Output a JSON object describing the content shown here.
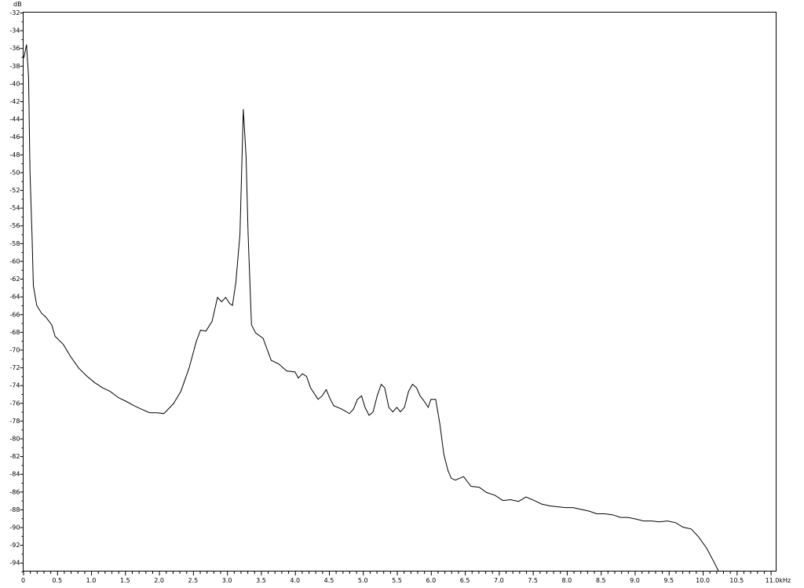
{
  "chart_data": {
    "type": "line",
    "title": "",
    "ylabel": "dB",
    "xlabel": "kHz",
    "xlim": [
      0,
      11.08
    ],
    "ylim": [
      -95,
      -32
    ],
    "grid": false,
    "line_color": "#000000",
    "y_ticks": [
      "-32",
      "-34",
      "-36",
      "-38",
      "-40",
      "-42",
      "-44",
      "-46",
      "-48",
      "-50",
      "-52",
      "-54",
      "-56",
      "-58",
      "-60",
      "-62",
      "-64",
      "-66",
      "-68",
      "-70",
      "-72",
      "-74",
      "-76",
      "-78",
      "-80",
      "-82",
      "-84",
      "-86",
      "-88",
      "-90",
      "-92",
      "-94"
    ],
    "x_ticks": [
      "0",
      "0.5",
      "1.0",
      "1.5",
      "2.0",
      "2.5",
      "3.0",
      "3.5",
      "4.0",
      "4.5",
      "5.0",
      "5.5",
      "6.0",
      "6.5",
      "7.0",
      "7.5",
      "8.0",
      "8.5",
      "9.0",
      "9.5",
      "10.0",
      "10.5",
      "11.0"
    ],
    "series": [
      {
        "x": [
          0.01,
          0.05,
          0.08,
          0.1,
          0.13,
          0.15,
          0.2,
          0.27,
          0.33,
          0.42,
          0.47,
          0.59,
          0.7,
          0.82,
          0.94,
          1.05,
          1.17,
          1.28,
          1.4,
          1.51,
          1.63,
          1.74,
          1.86,
          1.97,
          2.07,
          2.21,
          2.32,
          2.44,
          2.55,
          2.61,
          2.69,
          2.78,
          2.86,
          2.92,
          2.98,
          3.04,
          3.08,
          3.13,
          3.19,
          3.24,
          3.28,
          3.31,
          3.36,
          3.42,
          3.53,
          3.65,
          3.76,
          3.88,
          4.0,
          4.05,
          4.11,
          4.17,
          4.23,
          4.34,
          4.4,
          4.46,
          4.52,
          4.57,
          4.69,
          4.8,
          4.86,
          4.92,
          4.98,
          5.03,
          5.09,
          5.15,
          5.21,
          5.27,
          5.32,
          5.38,
          5.44,
          5.5,
          5.55,
          5.61,
          5.67,
          5.73,
          5.79,
          5.84,
          5.9,
          5.96,
          6.0,
          6.07,
          6.13,
          6.19,
          6.25,
          6.3,
          6.36,
          6.48,
          6.59,
          6.71,
          6.82,
          6.94,
          7.06,
          7.17,
          7.29,
          7.4,
          7.52,
          7.63,
          7.75,
          7.86,
          7.98,
          8.09,
          8.21,
          8.33,
          8.44,
          8.56,
          8.67,
          8.79,
          8.9,
          9.02,
          9.13,
          9.25,
          9.36,
          9.48,
          9.6,
          9.71,
          9.83,
          9.94,
          10.06,
          10.17,
          10.23
        ],
        "y": [
          -37.1,
          -35.6,
          -39.3,
          -50.0,
          -57.1,
          -62.8,
          -65.0,
          -65.9,
          -66.3,
          -67.2,
          -68.5,
          -69.4,
          -70.8,
          -72.1,
          -73.0,
          -73.7,
          -74.3,
          -74.7,
          -75.4,
          -75.8,
          -76.3,
          -76.7,
          -77.1,
          -77.1,
          -77.2,
          -76.1,
          -74.7,
          -72.1,
          -69.0,
          -67.8,
          -67.9,
          -66.8,
          -64.1,
          -64.6,
          -64.1,
          -64.8,
          -65.0,
          -62.4,
          -57.0,
          -42.9,
          -48.2,
          -57.0,
          -67.2,
          -68.1,
          -68.7,
          -71.2,
          -71.6,
          -72.4,
          -72.5,
          -73.2,
          -72.7,
          -73.0,
          -74.3,
          -75.6,
          -75.2,
          -74.5,
          -75.6,
          -76.3,
          -76.7,
          -77.2,
          -76.7,
          -75.6,
          -75.2,
          -76.5,
          -77.4,
          -77.0,
          -75.2,
          -73.9,
          -74.3,
          -76.5,
          -77.0,
          -76.5,
          -77.0,
          -76.5,
          -74.7,
          -73.9,
          -74.3,
          -75.2,
          -75.8,
          -76.5,
          -75.6,
          -75.6,
          -78.3,
          -81.8,
          -83.6,
          -84.5,
          -84.7,
          -84.3,
          -85.4,
          -85.5,
          -86.1,
          -86.4,
          -87.0,
          -86.9,
          -87.1,
          -86.6,
          -87.0,
          -87.4,
          -87.6,
          -87.7,
          -87.8,
          -87.8,
          -88.0,
          -88.2,
          -88.5,
          -88.5,
          -88.6,
          -88.9,
          -88.9,
          -89.1,
          -89.3,
          -89.3,
          -89.4,
          -89.3,
          -89.5,
          -90.0,
          -90.2,
          -91.1,
          -92.4,
          -94.0,
          -94.9
        ]
      }
    ]
  }
}
